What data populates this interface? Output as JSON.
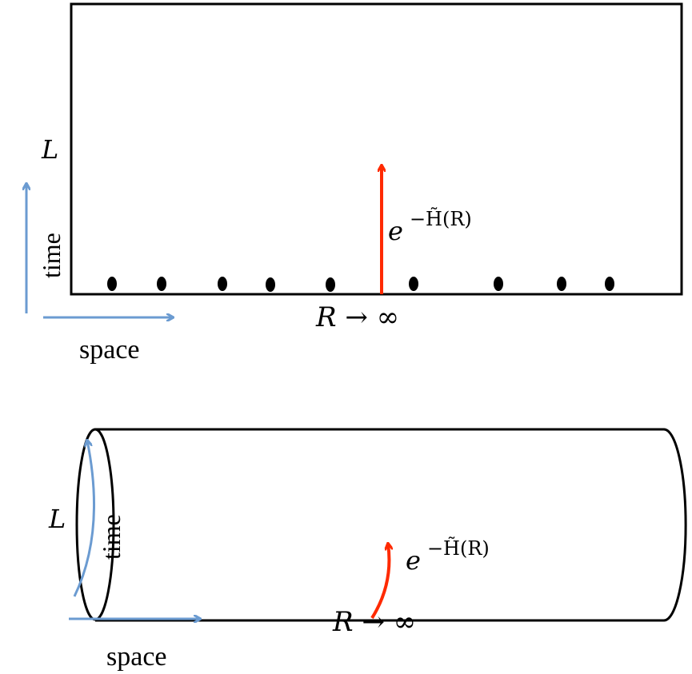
{
  "colors": {
    "axis_arrow": "#6b9bd1",
    "operator_arrow": "#ff2a00",
    "line": "#000000",
    "background": "#ffffff"
  },
  "top_panel": {
    "L_label": "L",
    "time_label": "time",
    "space_label": "space",
    "limit_label": "R → ∞",
    "operator_base": "e",
    "operator_exponent": "−H̃(R)"
  },
  "bottom_panel": {
    "L_label": "L",
    "time_label": "time",
    "space_label": "space",
    "limit_label": "R → ∞",
    "operator_base": "e",
    "operator_exponent": "−H̃(R)"
  }
}
